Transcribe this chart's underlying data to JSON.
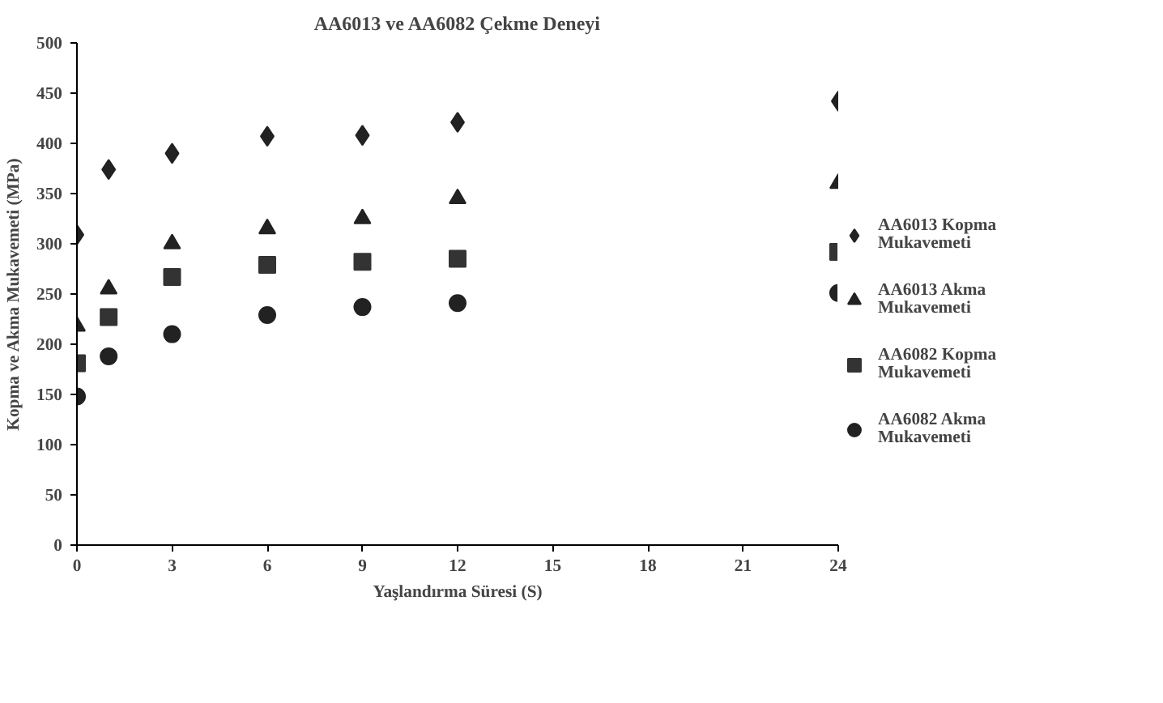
{
  "chart_data": {
    "type": "scatter",
    "title": "AA6013 ve AA6082 Çekme Deneyi",
    "xlabel": "Yaşlandırma Süresi (S)",
    "ylabel": "Kopma ve Akma Mukavemeti (MPa)",
    "x": [
      0,
      1,
      3,
      6,
      9,
      12,
      24
    ],
    "series": [
      {
        "name": "AA6013 Kopma Mukavemeti",
        "color": "#222222",
        "marker": "diamond",
        "values": [
          309,
          374,
          390,
          407,
          408,
          421,
          442
        ]
      },
      {
        "name": "AA6013 Akma Mukavemeti",
        "color": "#222222",
        "marker": "triangle",
        "values": [
          218,
          255,
          300,
          315,
          325,
          345,
          360
        ]
      },
      {
        "name": "AA6082 Kopma Mukavemeti",
        "color": "#333333",
        "marker": "square",
        "values": [
          181,
          227,
          267,
          279,
          282,
          285,
          292
        ]
      },
      {
        "name": "AA6082 Akma Mukavemeti",
        "color": "#222222",
        "marker": "circle",
        "values": [
          148,
          188,
          210,
          229,
          237,
          241,
          251
        ]
      }
    ],
    "xlim": [
      0,
      24
    ],
    "xticks": [
      0,
      3,
      6,
      9,
      12,
      15,
      18,
      21,
      24
    ],
    "ylim": [
      0,
      500
    ],
    "yticks": [
      0,
      50,
      100,
      150,
      200,
      250,
      300,
      350,
      400,
      450,
      500
    ],
    "grid": false,
    "legend": "right"
  }
}
